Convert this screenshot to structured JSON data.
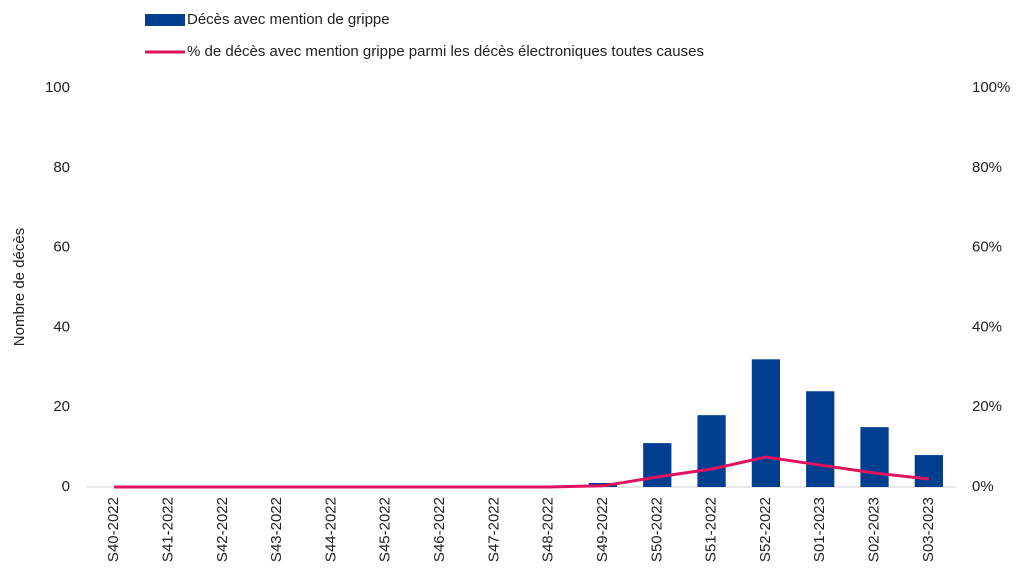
{
  "chart_data": {
    "type": "bar",
    "y_label": "Nombre de décès",
    "categories": [
      "S40-2022",
      "S41-2022",
      "S42-2022",
      "S43-2022",
      "S44-2022",
      "S45-2022",
      "S46-2022",
      "S47-2022",
      "S48-2022",
      "S49-2022",
      "S50-2022",
      "S51-2022",
      "S52-2022",
      "S01-2023",
      "S02-2023",
      "S03-2023"
    ],
    "series": [
      {
        "name": "Décès avec mention de grippe",
        "type": "bar",
        "color": "#003f8f",
        "values": [
          0,
          0,
          0,
          0,
          0,
          0,
          0,
          0,
          0,
          1,
          11,
          18,
          32,
          24,
          15,
          8
        ]
      },
      {
        "name": "% de décès avec mention grippe parmi les décès électroniques toutes causes",
        "type": "line",
        "axis": "y2",
        "color": "#e0125e",
        "values": [
          0,
          0,
          0,
          0,
          0,
          0,
          0,
          0,
          0,
          0.3,
          2.5,
          4.5,
          7.5,
          5.5,
          3.5,
          2
        ]
      }
    ],
    "ylim": [
      0,
      100
    ],
    "yticks": [
      0,
      20,
      40,
      60,
      80,
      100
    ],
    "y2lim": [
      0,
      100
    ],
    "y2ticks": [
      {
        "value": 0,
        "label": "0%"
      },
      {
        "value": 20,
        "label": "20%"
      },
      {
        "value": 40,
        "label": "40%"
      },
      {
        "value": 60,
        "label": "60%"
      },
      {
        "value": 80,
        "label": "80%"
      },
      {
        "value": 100,
        "label": "100%"
      }
    ]
  }
}
